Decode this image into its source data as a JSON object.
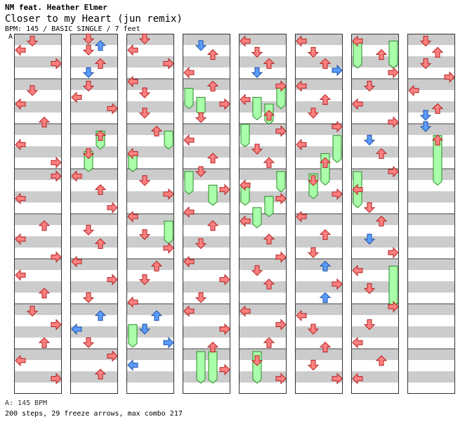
{
  "header": {
    "artist": "NM feat. Heather Elmer",
    "song": "Closer to my Heart (jun remix)",
    "info": "BPM: 145 / BASIC SINGLE / 7 feet",
    "bpm_marker": "A"
  },
  "footer": {
    "bpm_note": "A: 145 BPM",
    "stats": "200 steps, 29 freeze arrows, max combo 217"
  },
  "chart_data": {
    "type": "step-chart",
    "columns": 8,
    "measures_per_column": 8,
    "lanes": [
      "left",
      "down",
      "up",
      "right"
    ],
    "colors": {
      "quarter": "#ff8080",
      "eighth": "#5a9cff",
      "freeze": "#aaffaa",
      "stripe": "#cccccc"
    },
    "notes": [
      [
        0,
        0.1,
        1,
        "q"
      ],
      [
        0,
        0.3,
        0,
        "q"
      ],
      [
        0,
        0.6,
        3,
        "q"
      ],
      [
        0,
        1.2,
        1,
        "q"
      ],
      [
        0,
        1.5,
        0,
        "q"
      ],
      [
        0,
        1.9,
        2,
        "q"
      ],
      [
        0,
        2.4,
        0,
        "q"
      ],
      [
        0,
        2.8,
        3,
        "q"
      ],
      [
        0,
        3.1,
        3,
        "q"
      ],
      [
        0,
        3.6,
        0,
        "q"
      ],
      [
        0,
        4.2,
        2,
        "q"
      ],
      [
        0,
        4.5,
        0,
        "q"
      ],
      [
        0,
        4.9,
        3,
        "q"
      ],
      [
        0,
        5.3,
        0,
        "q"
      ],
      [
        0,
        5.7,
        2,
        "q"
      ],
      [
        0,
        6.1,
        1,
        "q"
      ],
      [
        0,
        6.4,
        3,
        "q"
      ],
      [
        0,
        6.8,
        2,
        "q"
      ],
      [
        0,
        7.2,
        0,
        "q"
      ],
      [
        0,
        7.6,
        3,
        "q"
      ],
      [
        1,
        0.05,
        1,
        "q"
      ],
      [
        1,
        0.2,
        2,
        "e"
      ],
      [
        1,
        0.3,
        1,
        "q"
      ],
      [
        1,
        0.6,
        2,
        "q"
      ],
      [
        1,
        0.8,
        1,
        "e"
      ],
      [
        1,
        1.1,
        1,
        "q"
      ],
      [
        1,
        1.35,
        0,
        "q"
      ],
      [
        1,
        1.6,
        3,
        "q"
      ],
      [
        1,
        2.2,
        2,
        "q"
      ],
      [
        1,
        2.6,
        1,
        "q"
      ],
      [
        1,
        3.1,
        0,
        "q"
      ],
      [
        1,
        3.4,
        2,
        "q"
      ],
      [
        1,
        3.8,
        3,
        "q"
      ],
      [
        1,
        4.3,
        1,
        "q"
      ],
      [
        1,
        4.6,
        2,
        "q"
      ],
      [
        1,
        5.0,
        0,
        "q"
      ],
      [
        1,
        5.4,
        3,
        "q"
      ],
      [
        1,
        5.8,
        1,
        "q"
      ],
      [
        1,
        6.2,
        2,
        "e"
      ],
      [
        1,
        6.5,
        0,
        "e"
      ],
      [
        1,
        6.8,
        1,
        "q"
      ],
      [
        1,
        7.1,
        3,
        "q"
      ],
      [
        1,
        7.5,
        2,
        "q"
      ],
      [
        2,
        0.05,
        1,
        "q"
      ],
      [
        2,
        0.3,
        0,
        "q"
      ],
      [
        2,
        0.6,
        3,
        "q"
      ],
      [
        2,
        1.0,
        0,
        "q"
      ],
      [
        2,
        1.25,
        1,
        "q"
      ],
      [
        2,
        1.7,
        1,
        "q"
      ],
      [
        2,
        2.1,
        2,
        "q"
      ],
      [
        2,
        2.6,
        0,
        "q"
      ],
      [
        2,
        3.2,
        1,
        "q"
      ],
      [
        2,
        3.5,
        3,
        "q"
      ],
      [
        2,
        4.0,
        0,
        "q"
      ],
      [
        2,
        4.4,
        1,
        "q"
      ],
      [
        2,
        4.7,
        3,
        "q"
      ],
      [
        2,
        5.1,
        2,
        "q"
      ],
      [
        2,
        5.4,
        1,
        "q"
      ],
      [
        2,
        5.9,
        0,
        "q"
      ],
      [
        2,
        6.2,
        2,
        "e"
      ],
      [
        2,
        6.5,
        1,
        "e"
      ],
      [
        2,
        6.8,
        3,
        "e"
      ],
      [
        2,
        7.3,
        0,
        "e"
      ],
      [
        3,
        0.2,
        1,
        "e"
      ],
      [
        3,
        0.4,
        2,
        "q"
      ],
      [
        3,
        0.8,
        0,
        "q"
      ],
      [
        3,
        1.1,
        2,
        "q"
      ],
      [
        3,
        1.5,
        3,
        "q"
      ],
      [
        3,
        1.8,
        1,
        "q"
      ],
      [
        3,
        2.3,
        0,
        "q"
      ],
      [
        3,
        2.7,
        2,
        "q"
      ],
      [
        3,
        3.0,
        1,
        "q"
      ],
      [
        3,
        3.4,
        3,
        "q"
      ],
      [
        3,
        3.9,
        0,
        "q"
      ],
      [
        3,
        4.2,
        2,
        "q"
      ],
      [
        3,
        4.6,
        1,
        "q"
      ],
      [
        3,
        5.0,
        0,
        "q"
      ],
      [
        3,
        5.4,
        3,
        "q"
      ],
      [
        3,
        5.8,
        1,
        "q"
      ],
      [
        3,
        6.1,
        0,
        "q"
      ],
      [
        3,
        6.5,
        3,
        "q"
      ],
      [
        3,
        6.9,
        2,
        "q"
      ],
      [
        3,
        7.4,
        3,
        "q"
      ],
      [
        4,
        0.1,
        0,
        "q"
      ],
      [
        4,
        0.35,
        1,
        "q"
      ],
      [
        4,
        0.6,
        2,
        "q"
      ],
      [
        4,
        0.8,
        1,
        "e"
      ],
      [
        4,
        1.1,
        3,
        "q"
      ],
      [
        4,
        1.4,
        0,
        "q"
      ],
      [
        4,
        1.75,
        2,
        "q"
      ],
      [
        4,
        2.1,
        3,
        "q"
      ],
      [
        4,
        2.5,
        1,
        "q"
      ],
      [
        4,
        2.8,
        2,
        "q"
      ],
      [
        4,
        3.3,
        0,
        "q"
      ],
      [
        4,
        3.6,
        3,
        "q"
      ],
      [
        4,
        4.1,
        0,
        "q"
      ],
      [
        4,
        4.5,
        2,
        "q"
      ],
      [
        4,
        4.9,
        3,
        "q"
      ],
      [
        4,
        5.2,
        1,
        "q"
      ],
      [
        4,
        5.5,
        2,
        "q"
      ],
      [
        4,
        6.1,
        0,
        "q"
      ],
      [
        4,
        6.4,
        3,
        "q"
      ],
      [
        4,
        6.8,
        2,
        "q"
      ],
      [
        4,
        7.2,
        1,
        "q"
      ],
      [
        4,
        7.6,
        3,
        "q"
      ],
      [
        5,
        0.1,
        0,
        "q"
      ],
      [
        5,
        0.35,
        1,
        "q"
      ],
      [
        5,
        0.6,
        2,
        "q"
      ],
      [
        5,
        0.75,
        3,
        "e"
      ],
      [
        5,
        1.1,
        0,
        "q"
      ],
      [
        5,
        1.4,
        2,
        "q"
      ],
      [
        5,
        1.7,
        1,
        "q"
      ],
      [
        5,
        2.0,
        3,
        "q"
      ],
      [
        5,
        2.4,
        0,
        "q"
      ],
      [
        5,
        2.8,
        2,
        "q"
      ],
      [
        5,
        3.2,
        1,
        "q"
      ],
      [
        5,
        3.5,
        3,
        "q"
      ],
      [
        5,
        4.0,
        0,
        "q"
      ],
      [
        5,
        4.4,
        2,
        "q"
      ],
      [
        5,
        4.8,
        1,
        "q"
      ],
      [
        5,
        5.1,
        2,
        "e"
      ],
      [
        5,
        5.5,
        3,
        "q"
      ],
      [
        5,
        5.8,
        2,
        "e"
      ],
      [
        5,
        6.2,
        0,
        "q"
      ],
      [
        5,
        6.5,
        1,
        "q"
      ],
      [
        5,
        6.9,
        2,
        "q"
      ],
      [
        5,
        7.3,
        1,
        "q"
      ],
      [
        5,
        7.6,
        3,
        "q"
      ],
      [
        6,
        0.1,
        0,
        "q"
      ],
      [
        6,
        0.4,
        2,
        "q"
      ],
      [
        6,
        0.8,
        3,
        "q"
      ],
      [
        6,
        1.1,
        1,
        "q"
      ],
      [
        6,
        1.5,
        0,
        "q"
      ],
      [
        6,
        1.9,
        3,
        "q"
      ],
      [
        6,
        2.3,
        1,
        "e"
      ],
      [
        6,
        2.6,
        2,
        "q"
      ],
      [
        6,
        3.0,
        3,
        "q"
      ],
      [
        6,
        3.4,
        0,
        "q"
      ],
      [
        6,
        3.8,
        1,
        "q"
      ],
      [
        6,
        4.1,
        2,
        "q"
      ],
      [
        6,
        4.5,
        1,
        "e"
      ],
      [
        6,
        4.8,
        3,
        "q"
      ],
      [
        6,
        5.2,
        0,
        "q"
      ],
      [
        6,
        5.6,
        1,
        "q"
      ],
      [
        6,
        6.0,
        3,
        "q"
      ],
      [
        6,
        6.4,
        1,
        "q"
      ],
      [
        6,
        6.8,
        0,
        "q"
      ],
      [
        6,
        7.2,
        2,
        "q"
      ],
      [
        6,
        7.6,
        0,
        "q"
      ],
      [
        7,
        0.1,
        1,
        "q"
      ],
      [
        7,
        0.35,
        2,
        "q"
      ],
      [
        7,
        0.6,
        1,
        "q"
      ],
      [
        7,
        0.9,
        3,
        "q"
      ],
      [
        7,
        1.2,
        0,
        "q"
      ],
      [
        7,
        1.6,
        2,
        "q"
      ],
      [
        7,
        1.75,
        1,
        "e"
      ],
      [
        7,
        2.0,
        1,
        "e"
      ],
      [
        7,
        2.3,
        2,
        "q"
      ]
    ],
    "freezes": [
      [
        1,
        2.1,
        2.5,
        2
      ],
      [
        1,
        2.55,
        3.0,
        1
      ],
      [
        2,
        2.1,
        2.5,
        3
      ],
      [
        2,
        2.6,
        3.0,
        0
      ],
      [
        2,
        4.1,
        4.6,
        3
      ],
      [
        2,
        6.4,
        6.9,
        0
      ],
      [
        3,
        1.15,
        1.6,
        0
      ],
      [
        3,
        1.35,
        1.75,
        1
      ],
      [
        3,
        3.0,
        3.5,
        0
      ],
      [
        3,
        3.3,
        3.75,
        2
      ],
      [
        3,
        7.0,
        7.7,
        1
      ],
      [
        3,
        7.0,
        7.7,
        2
      ],
      [
        4,
        1.1,
        1.6,
        3
      ],
      [
        4,
        1.35,
        1.85,
        1
      ],
      [
        4,
        1.5,
        1.95,
        2
      ],
      [
        4,
        1.95,
        2.45,
        0
      ],
      [
        4,
        3.0,
        3.45,
        3
      ],
      [
        4,
        3.3,
        3.75,
        0
      ],
      [
        4,
        3.55,
        4.0,
        2
      ],
      [
        4,
        3.8,
        4.25,
        1
      ],
      [
        4,
        7.0,
        7.7,
        1
      ],
      [
        5,
        2.2,
        2.8,
        3
      ],
      [
        5,
        2.6,
        3.3,
        2
      ],
      [
        5,
        3.05,
        3.6,
        1
      ],
      [
        6,
        0.1,
        0.7,
        0
      ],
      [
        6,
        0.1,
        0.7,
        3
      ],
      [
        6,
        3.0,
        3.8,
        0
      ],
      [
        6,
        5.1,
        6.0,
        3
      ],
      [
        7,
        2.2,
        3.3,
        2
      ]
    ]
  }
}
